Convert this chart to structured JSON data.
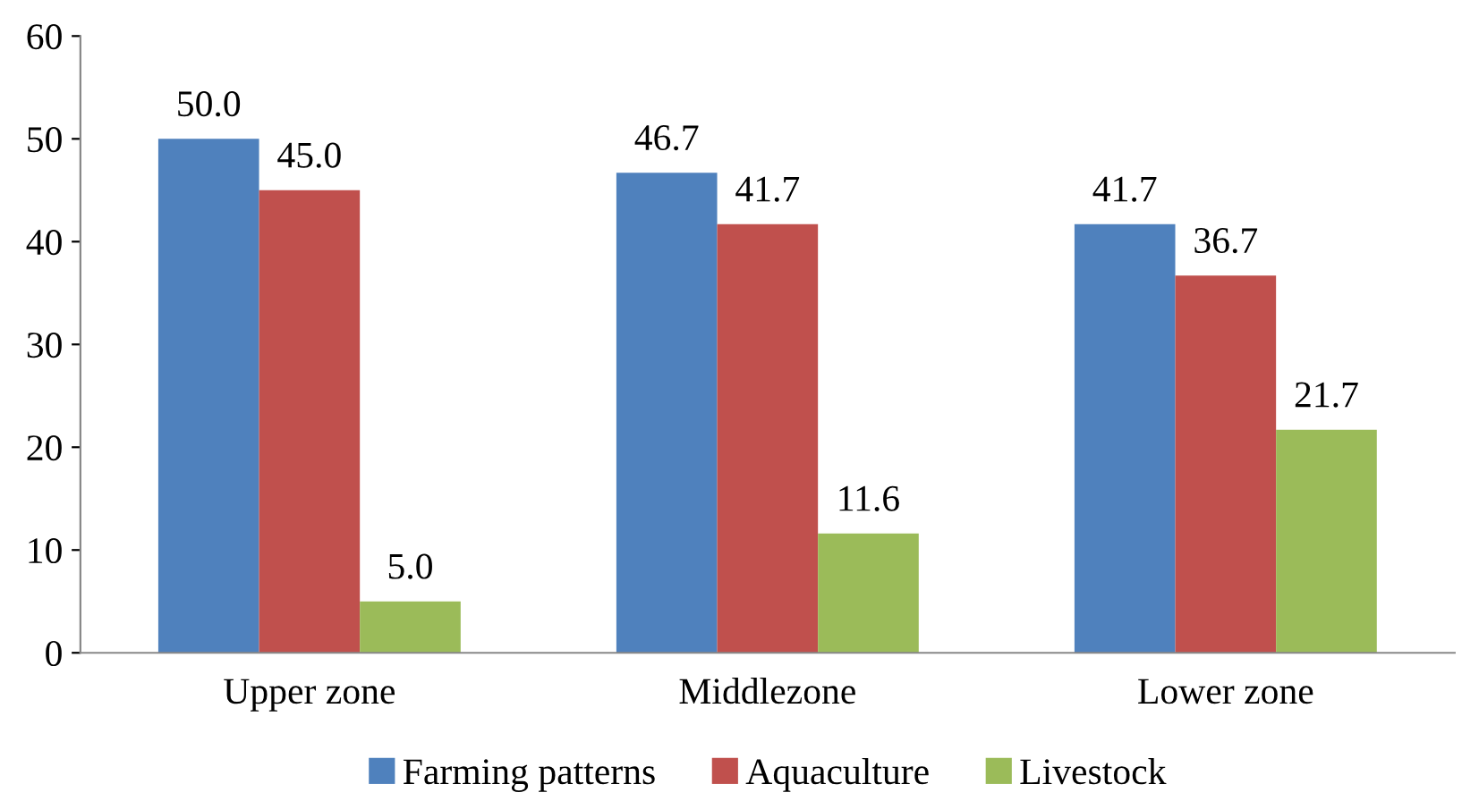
{
  "chart_data": {
    "type": "bar",
    "categories": [
      "Upper zone",
      "Middlezone",
      "Lower zone"
    ],
    "series": [
      {
        "name": "Farming patterns",
        "color": "#4f81bd",
        "values": [
          50.0,
          46.7,
          41.7
        ],
        "value_labels": [
          "50.0",
          "46.7",
          "41.7"
        ]
      },
      {
        "name": "Aquaculture",
        "color": "#c0504d",
        "values": [
          45.0,
          41.7,
          36.7
        ],
        "value_labels": [
          "45.0",
          "41.7",
          "36.7"
        ]
      },
      {
        "name": "Livestock",
        "color": "#9bbb59",
        "values": [
          5.0,
          11.6,
          21.7
        ],
        "value_labels": [
          "5.0",
          "11.6",
          "21.7"
        ]
      }
    ],
    "ylim": [
      0,
      60
    ],
    "yticks": [
      0,
      10,
      20,
      30,
      40,
      50,
      60
    ],
    "grid": false,
    "legend": "bottom"
  }
}
